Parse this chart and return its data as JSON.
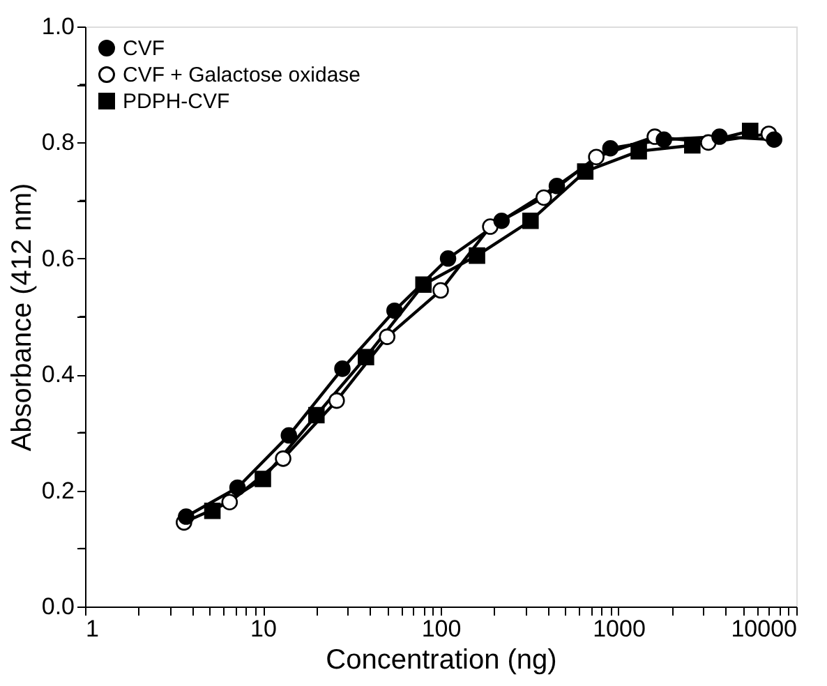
{
  "chart_data": {
    "type": "line",
    "xlabel": "Concentration (ng)",
    "ylabel": "Absorbance (412 nm)",
    "log": "x",
    "grid": false,
    "legend": "top left",
    "line_style": "solid",
    "xlim": [
      1,
      10000
    ],
    "ylim": [
      0,
      1
    ],
    "xticks": [
      1,
      {
        "value": 2,
        "label": null
      },
      {
        "value": 3,
        "label": null
      },
      {
        "value": 4,
        "label": null
      },
      {
        "value": 5,
        "label": null
      },
      {
        "value": 6,
        "label": null
      },
      {
        "value": 7,
        "label": null
      },
      {
        "value": 8,
        "label": null
      },
      {
        "value": 9,
        "label": null
      },
      10,
      {
        "value": 20,
        "label": null
      },
      {
        "value": 30,
        "label": null
      },
      {
        "value": 40,
        "label": null
      },
      {
        "value": 50,
        "label": null
      },
      {
        "value": 60,
        "label": null
      },
      {
        "value": 70,
        "label": null
      },
      {
        "value": 80,
        "label": null
      },
      {
        "value": 90,
        "label": null
      },
      100,
      {
        "value": 200,
        "label": null
      },
      {
        "value": 300,
        "label": null
      },
      {
        "value": 400,
        "label": null
      },
      {
        "value": 500,
        "label": null
      },
      {
        "value": 600,
        "label": null
      },
      {
        "value": 700,
        "label": null
      },
      {
        "value": 800,
        "label": null
      },
      {
        "value": 900,
        "label": null
      },
      1000,
      {
        "value": 2000,
        "label": null
      },
      {
        "value": 3000,
        "label": null
      },
      {
        "value": 4000,
        "label": null
      },
      {
        "value": 5000,
        "label": null
      },
      {
        "value": 6000,
        "label": null
      },
      {
        "value": 7000,
        "label": null
      },
      {
        "value": 8000,
        "label": null
      },
      {
        "value": 9000,
        "label": null
      },
      10000
    ],
    "yticks": [
      {
        "value": 0,
        "label": "0.0"
      },
      {
        "value": 0.1,
        "label": null
      },
      0.2,
      {
        "value": 0.3,
        "label": null
      },
      0.4,
      {
        "value": 0.5,
        "label": null
      },
      0.6,
      {
        "value": 0.7,
        "label": null
      },
      0.8,
      {
        "value": 0.9,
        "label": null
      },
      {
        "value": 1,
        "label": "1.0"
      }
    ],
    "series": [
      {
        "name": "CVF",
        "color": "#000000",
        "marker": "circle",
        "x": [
          3.7,
          7.2,
          14,
          28,
          55,
          110,
          220,
          450,
          900,
          1800,
          3700,
          7500
        ],
        "values": [
          0.155,
          0.205,
          0.295,
          0.41,
          0.51,
          0.6,
          0.665,
          0.725,
          0.79,
          0.805,
          0.81,
          0.805
        ]
      },
      {
        "name": "CVF + Galactose oxidase",
        "color": "#ffffff",
        "marker": "circle",
        "x": [
          3.6,
          6.5,
          13,
          26,
          50,
          100,
          190,
          380,
          750,
          1600,
          3200,
          7000
        ],
        "values": [
          0.145,
          0.18,
          0.255,
          0.355,
          0.465,
          0.545,
          0.655,
          0.705,
          0.775,
          0.81,
          0.8,
          0.815
        ]
      },
      {
        "name": "PDPH-CVF",
        "color": "#000000",
        "marker": "square",
        "x": [
          5.2,
          10,
          20,
          38,
          80,
          160,
          320,
          650,
          1300,
          2600,
          5500
        ],
        "values": [
          0.165,
          0.22,
          0.33,
          0.43,
          0.555,
          0.605,
          0.665,
          0.75,
          0.785,
          0.795,
          0.82
        ]
      }
    ]
  }
}
